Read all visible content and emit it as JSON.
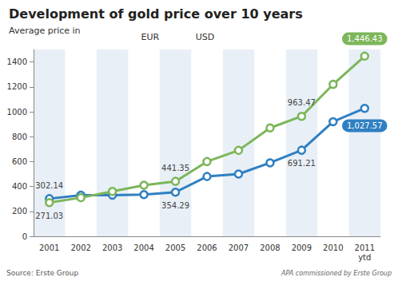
{
  "chart_data": {
    "type": "line",
    "title": "Development of gold price over 10 years",
    "subtitle": "Average price in",
    "source": "Source: Erste Group",
    "credit": "APA commissioned by Erste Group",
    "categories": [
      "2001",
      "2002",
      "2003",
      "2004",
      "2005",
      "2006",
      "2007",
      "2008",
      "2009",
      "2010",
      "2011\nytd"
    ],
    "series": [
      {
        "name": "EUR",
        "color": "#2f7fc2",
        "marker": "circle",
        "values": [
          302.14,
          330,
          330,
          335,
          354.29,
          480,
          500,
          590,
          691.21,
          920,
          1027.57
        ],
        "value_labels": [
          "302.14",
          null,
          null,
          null,
          "354.29",
          null,
          null,
          null,
          "691.21",
          null,
          "1,027.57"
        ]
      },
      {
        "name": "USD",
        "color": "#7cb65a",
        "marker": "circle",
        "values": [
          271.03,
          310,
          360,
          410,
          441.35,
          600,
          690,
          870,
          963.47,
          1220,
          1446.43
        ],
        "value_labels": [
          "271.03",
          null,
          null,
          null,
          "441.35",
          null,
          null,
          null,
          "963.47",
          null,
          "1,446.43"
        ]
      }
    ],
    "ylim": [
      0,
      1500
    ],
    "yticks": [
      0,
      200,
      400,
      600,
      800,
      1000,
      1200,
      1400
    ],
    "grid": true,
    "legend": "top",
    "data_labels": true
  }
}
